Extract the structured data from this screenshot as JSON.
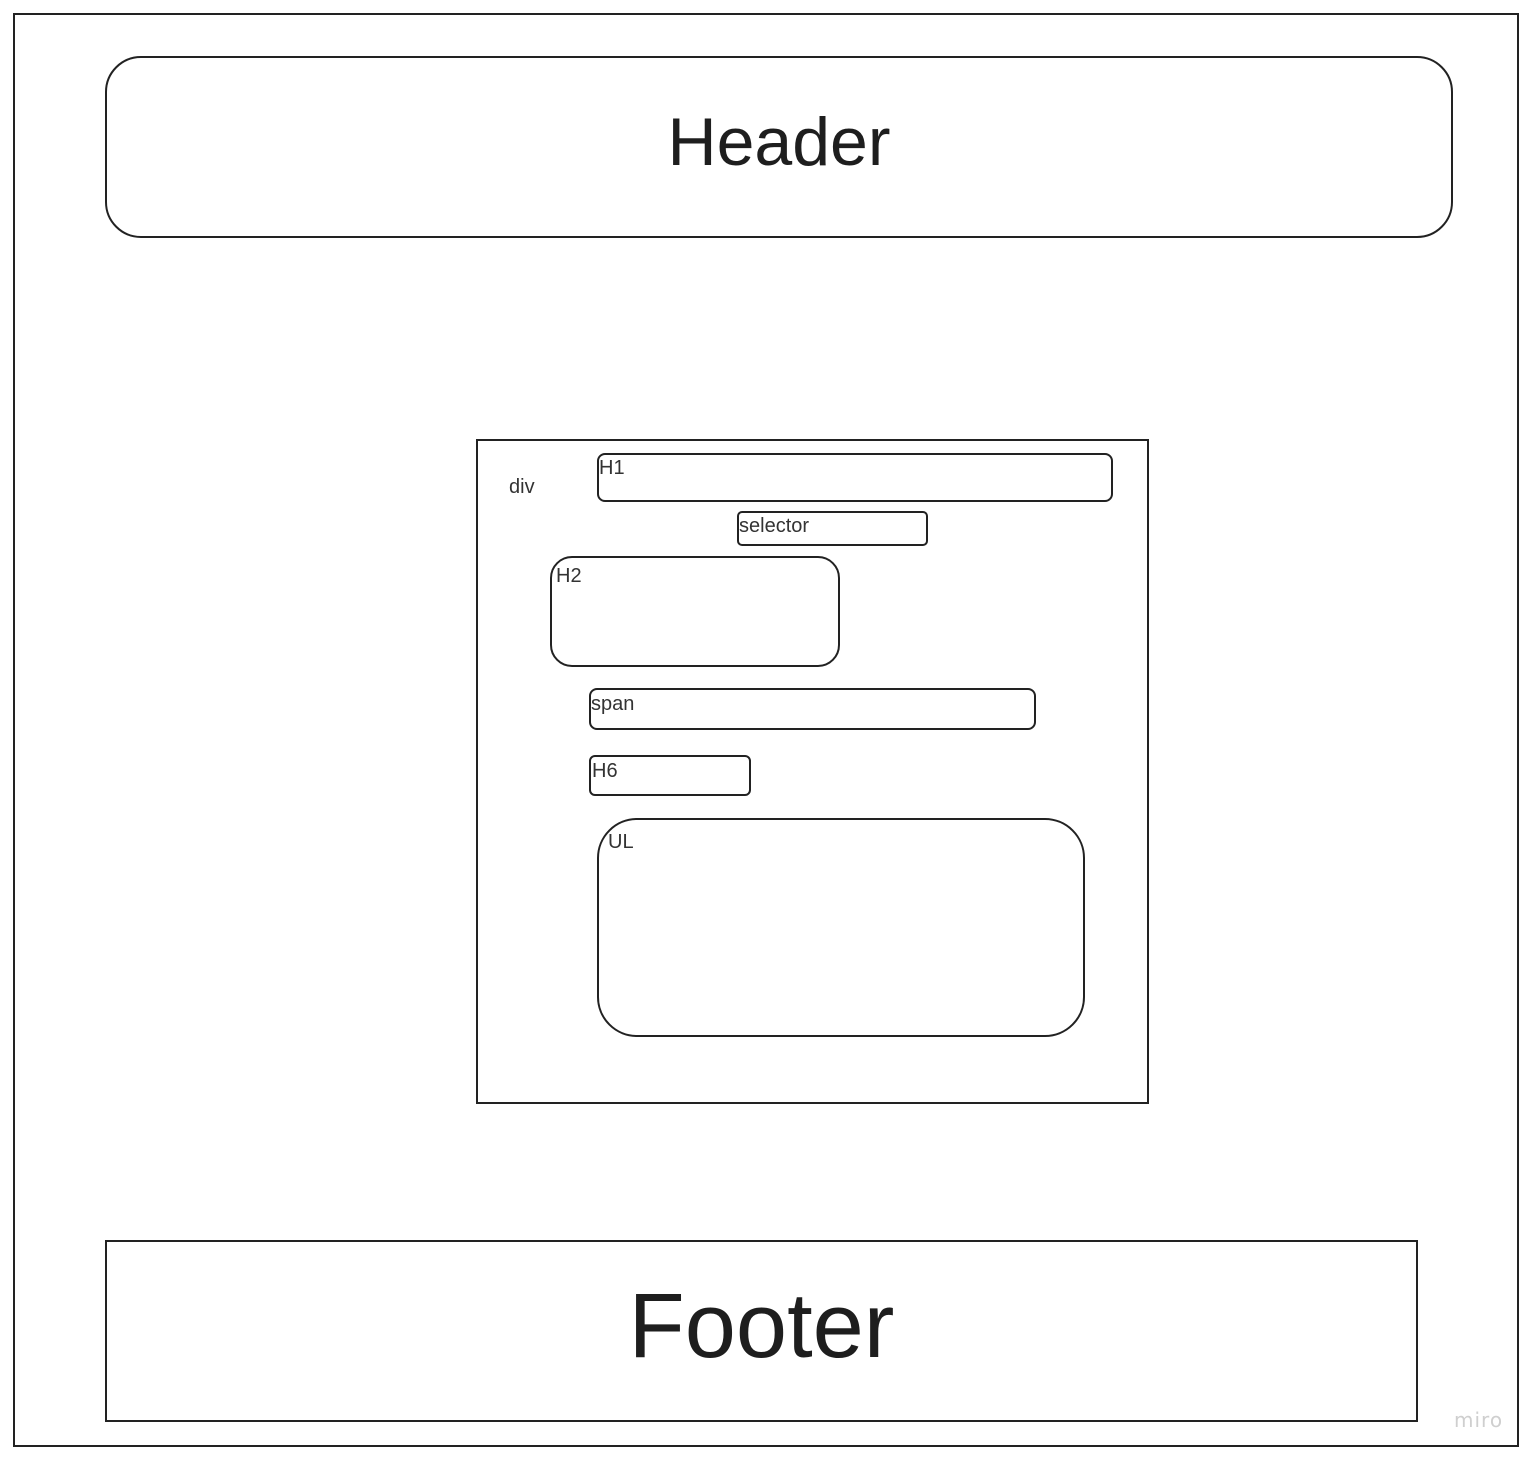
{
  "header": {
    "label": "Header"
  },
  "footer": {
    "label": "Footer"
  },
  "container": {
    "label": "div",
    "elements": {
      "h1": "H1",
      "selector": "selector",
      "h2": "H2",
      "span": "span",
      "h6": "H6",
      "ul": "UL"
    }
  },
  "watermark": "miro"
}
